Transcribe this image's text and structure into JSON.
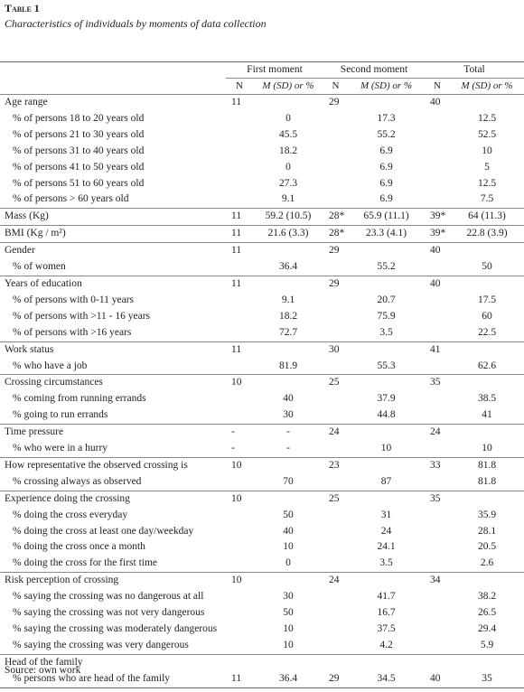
{
  "header": {
    "title": "Table 1",
    "caption": "Characteristics of individuals by moments of data collection"
  },
  "table": {
    "groups_header": [
      "First moment",
      "Second moment",
      "Total"
    ],
    "subheader": [
      "N",
      "M (SD) or %",
      "N",
      "M (SD) or %",
      "N",
      "M (SD) or %"
    ],
    "groups": [
      {
        "rows": [
          [
            "Age range",
            "11",
            null,
            "29",
            null,
            "40",
            null
          ],
          [
            "% of persons 18 to 20 years old",
            null,
            "0",
            null,
            "17.3",
            null,
            "12.5"
          ],
          [
            "% of persons 21 to 30 years old",
            null,
            "45.5",
            null,
            "55.2",
            null,
            "52.5"
          ],
          [
            "% of persons 31 to 40 years old",
            null,
            "18.2",
            null,
            "6.9",
            null,
            "10"
          ],
          [
            "% of persons 41 to 50 years old",
            null,
            "0",
            null,
            "6.9",
            null,
            "5"
          ],
          [
            "% of persons 51 to 60 years old",
            null,
            "27.3",
            null,
            "6.9",
            null,
            "12.5"
          ],
          [
            "% of persons > 60 years old",
            null,
            "9.1",
            null,
            "6.9",
            null,
            "7.5"
          ]
        ]
      },
      {
        "rows": [
          [
            "Mass (Kg)",
            "11",
            "59.2 (10.5)",
            "28*",
            "65.9 (11.1)",
            "39*",
            "64 (11.3)"
          ]
        ]
      },
      {
        "rows": [
          [
            "BMI (Kg / m²)",
            "11",
            "21.6 (3.3)",
            "28*",
            "23.3 (4.1)",
            "39*",
            "22.8 (3.9)"
          ]
        ]
      },
      {
        "rows": [
          [
            "Gender",
            "11",
            null,
            "29",
            null,
            "40",
            null
          ],
          [
            "% of women",
            null,
            "36.4",
            null,
            "55.2",
            null,
            "50"
          ]
        ]
      },
      {
        "rows": [
          [
            "Years of education",
            "11",
            null,
            "29",
            null,
            "40",
            null
          ],
          [
            "% of persons with 0-11 years",
            null,
            "9.1",
            null,
            "20.7",
            null,
            "17.5"
          ],
          [
            "% of persons with >11 - 16 years",
            null,
            "18.2",
            null,
            "75.9",
            null,
            "60"
          ],
          [
            "% of persons with >16 years",
            null,
            "72.7",
            null,
            "3.5",
            null,
            "22.5"
          ]
        ]
      },
      {
        "rows": [
          [
            "Work status",
            "11",
            null,
            "30",
            null,
            "41",
            null
          ],
          [
            "% who have a job",
            null,
            "81.9",
            null,
            "55.3",
            null,
            "62.6"
          ]
        ]
      },
      {
        "rows": [
          [
            "Crossing circumstances",
            "10",
            null,
            "25",
            null,
            "35",
            null
          ],
          [
            "% coming from running errands",
            null,
            "40",
            null,
            "37.9",
            null,
            "38.5"
          ],
          [
            "% going to run errands",
            null,
            "30",
            null,
            "44.8",
            null,
            "41"
          ]
        ]
      },
      {
        "rows": [
          [
            "Time pressure",
            "-",
            "-",
            "24",
            null,
            "24",
            null
          ],
          [
            "% who were in a hurry",
            "-",
            "-",
            null,
            "10",
            null,
            "10"
          ]
        ]
      },
      {
        "rows": [
          [
            "How representative the observed crossing is",
            "10",
            null,
            "23",
            null,
            "33",
            "81.8"
          ],
          [
            "% crossing always as observed",
            null,
            "70",
            null,
            "87",
            null,
            "81.8"
          ]
        ]
      },
      {
        "rows": [
          [
            "Experience doing the crossing",
            "10",
            null,
            "25",
            null,
            "35",
            null
          ],
          [
            "% doing the cross everyday",
            null,
            "50",
            null,
            "31",
            null,
            "35.9"
          ],
          [
            "% doing the cross at least one day/weekday",
            null,
            "40",
            null,
            "24",
            null,
            "28.1"
          ],
          [
            "% doing the cross once a month",
            null,
            "10",
            null,
            "24.1",
            null,
            "20.5"
          ],
          [
            "% doing the cross for the first time",
            null,
            "0",
            null,
            "3.5",
            null,
            "2.6"
          ]
        ]
      },
      {
        "rows": [
          [
            "Risk perception of crossing",
            "10",
            null,
            "24",
            null,
            "34",
            null
          ],
          [
            "% saying the crossing was no dangerous at all",
            null,
            "30",
            null,
            "41.7",
            null,
            "38.2"
          ],
          [
            "% saying the crossing was not very dangerous",
            null,
            "50",
            null,
            "16.7",
            null,
            "26.5"
          ],
          [
            "% saying the crossing was moderately dangerous",
            null,
            "10",
            null,
            "37.5",
            null,
            "29.4"
          ],
          [
            "% saying the crossing was very dangerous",
            null,
            "10",
            null,
            "4.2",
            null,
            "5.9"
          ]
        ]
      },
      {
        "rows": [
          [
            "Head of the family",
            null,
            null,
            null,
            null,
            null,
            null
          ],
          [
            "% persons who are head of the family",
            "11",
            "36.4",
            "29",
            "34.5",
            "40",
            "35"
          ]
        ]
      }
    ]
  },
  "footer": {
    "source": "Source: own work"
  }
}
